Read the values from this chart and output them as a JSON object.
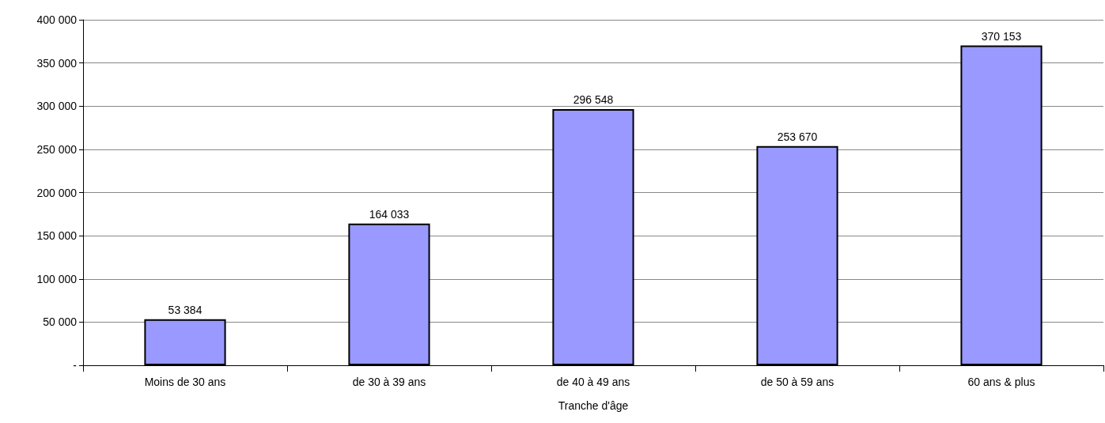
{
  "chart_data": {
    "type": "bar",
    "xlabel": "Tranche d'âge",
    "categories": [
      "Moins de 30 ans",
      "de 30 à 39 ans",
      "de 40 à 49 ans",
      "de 50 à 59 ans",
      "60 ans & plus"
    ],
    "values": [
      53384,
      164033,
      296548,
      253670,
      370153
    ],
    "value_labels": [
      "53 384",
      "164 033",
      "296 548",
      "253 670",
      "370 153"
    ],
    "color": "#9999ff",
    "ylim": [
      0,
      400000
    ],
    "yticks": [
      {
        "value": 0,
        "label": "-"
      },
      {
        "value": 50000,
        "label": "50 000"
      },
      {
        "value": 100000,
        "label": "100 000"
      },
      {
        "value": 150000,
        "label": "150 000"
      },
      {
        "value": 200000,
        "label": "200 000"
      },
      {
        "value": 250000,
        "label": "250 000"
      },
      {
        "value": 300000,
        "label": "300 000"
      },
      {
        "value": 350000,
        "label": "350 000"
      },
      {
        "value": 400000,
        "label": "400 000"
      }
    ],
    "grid": "y"
  }
}
